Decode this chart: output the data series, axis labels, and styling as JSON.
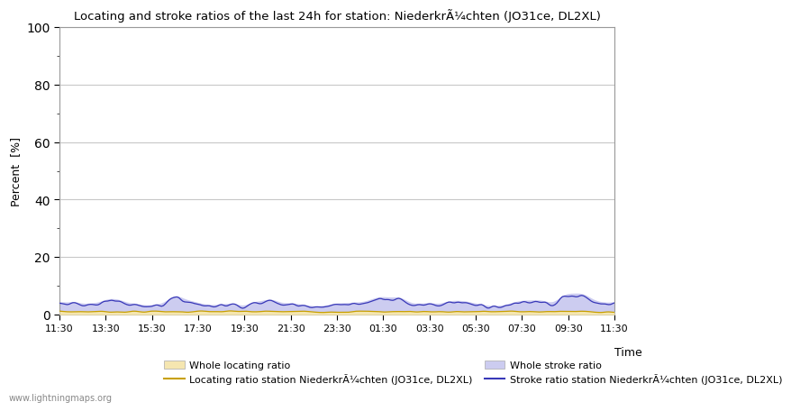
{
  "title": "Locating and stroke ratios of the last 24h for station: NiederkrÃ¼chten (JO31ce, DL2XL)",
  "xlabel": "Time",
  "ylabel": "Percent  [%]",
  "x_ticks": [
    "11:30",
    "13:30",
    "15:30",
    "17:30",
    "19:30",
    "21:30",
    "23:30",
    "01:30",
    "03:30",
    "05:30",
    "07:30",
    "09:30",
    "11:30"
  ],
  "ylim": [
    0,
    100
  ],
  "yticks_major": [
    0,
    20,
    40,
    60,
    80,
    100
  ],
  "whole_locating_color": "#f5e6b0",
  "whole_stroke_color": "#ccccf0",
  "locating_line_color": "#c8a000",
  "stroke_line_color": "#3838b8",
  "grid_color": "#c8c8c8",
  "watermark": "www.lightningmaps.org",
  "legend_labels": [
    "Whole locating ratio",
    "Locating ratio station NiederkrÃ¼chten (JO31ce, DL2XL)",
    "Whole stroke ratio",
    "Stroke ratio station NiederkrÃ¼chten (JO31ce, DL2XL)"
  ]
}
